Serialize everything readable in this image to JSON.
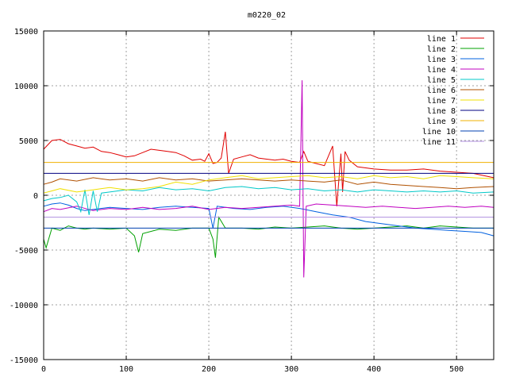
{
  "chart_data": {
    "type": "line",
    "title": "m0220_02",
    "xlabel": "",
    "ylabel": "",
    "xlim": [
      0,
      545
    ],
    "ylim": [
      -15000,
      15000
    ],
    "x_ticks": [
      0,
      100,
      200,
      300,
      400,
      500
    ],
    "y_ticks": [
      -15000,
      -10000,
      -5000,
      0,
      5000,
      10000,
      15000
    ],
    "grid": true,
    "legend_position": "top-right",
    "series": [
      {
        "name": "line 1",
        "color": "#e00000",
        "points": [
          [
            0,
            4200
          ],
          [
            10,
            5000
          ],
          [
            20,
            5100
          ],
          [
            30,
            4700
          ],
          [
            40,
            4500
          ],
          [
            50,
            4300
          ],
          [
            60,
            4400
          ],
          [
            70,
            4000
          ],
          [
            80,
            3900
          ],
          [
            90,
            3700
          ],
          [
            100,
            3500
          ],
          [
            110,
            3600
          ],
          [
            120,
            3900
          ],
          [
            130,
            4200
          ],
          [
            140,
            4100
          ],
          [
            150,
            4000
          ],
          [
            160,
            3900
          ],
          [
            170,
            3600
          ],
          [
            180,
            3200
          ],
          [
            190,
            3300
          ],
          [
            195,
            3100
          ],
          [
            200,
            3800
          ],
          [
            205,
            2900
          ],
          [
            210,
            3000
          ],
          [
            215,
            3400
          ],
          [
            220,
            5800
          ],
          [
            224,
            2000
          ],
          [
            230,
            3300
          ],
          [
            240,
            3500
          ],
          [
            250,
            3700
          ],
          [
            260,
            3400
          ],
          [
            270,
            3300
          ],
          [
            280,
            3200
          ],
          [
            290,
            3300
          ],
          [
            300,
            3100
          ],
          [
            310,
            3000
          ],
          [
            315,
            4000
          ],
          [
            320,
            3100
          ],
          [
            330,
            2900
          ],
          [
            340,
            2700
          ],
          [
            350,
            4500
          ],
          [
            355,
            -1000
          ],
          [
            360,
            3800
          ],
          [
            362,
            300
          ],
          [
            365,
            4000
          ],
          [
            370,
            3200
          ],
          [
            380,
            2600
          ],
          [
            390,
            2500
          ],
          [
            400,
            2400
          ],
          [
            420,
            2300
          ],
          [
            440,
            2300
          ],
          [
            460,
            2400
          ],
          [
            480,
            2200
          ],
          [
            500,
            2100
          ],
          [
            520,
            2000
          ],
          [
            545,
            1600
          ]
        ]
      },
      {
        "name": "line 2",
        "color": "#00a000",
        "points": [
          [
            0,
            -4000
          ],
          [
            3,
            -4800
          ],
          [
            10,
            -3000
          ],
          [
            20,
            -3200
          ],
          [
            30,
            -2800
          ],
          [
            40,
            -3000
          ],
          [
            50,
            -3100
          ],
          [
            60,
            -3000
          ],
          [
            80,
            -3100
          ],
          [
            100,
            -3000
          ],
          [
            110,
            -3700
          ],
          [
            115,
            -5200
          ],
          [
            120,
            -3500
          ],
          [
            140,
            -3100
          ],
          [
            160,
            -3200
          ],
          [
            180,
            -3000
          ],
          [
            200,
            -3000
          ],
          [
            205,
            -4000
          ],
          [
            208,
            -5700
          ],
          [
            212,
            -2000
          ],
          [
            220,
            -3000
          ],
          [
            240,
            -3000
          ],
          [
            260,
            -3100
          ],
          [
            280,
            -2900
          ],
          [
            300,
            -3000
          ],
          [
            320,
            -2900
          ],
          [
            340,
            -2800
          ],
          [
            360,
            -3000
          ],
          [
            380,
            -3100
          ],
          [
            400,
            -3000
          ],
          [
            420,
            -2900
          ],
          [
            440,
            -2800
          ],
          [
            460,
            -3000
          ],
          [
            480,
            -2800
          ],
          [
            500,
            -2900
          ],
          [
            520,
            -3000
          ],
          [
            545,
            -3000
          ]
        ]
      },
      {
        "name": "line 3",
        "color": "#0060e0",
        "points": [
          [
            0,
            -1000
          ],
          [
            10,
            -800
          ],
          [
            20,
            -700
          ],
          [
            30,
            -900
          ],
          [
            40,
            -1200
          ],
          [
            50,
            -1400
          ],
          [
            60,
            -1300
          ],
          [
            80,
            -1100
          ],
          [
            100,
            -1200
          ],
          [
            120,
            -1300
          ],
          [
            140,
            -1100
          ],
          [
            160,
            -1000
          ],
          [
            180,
            -1100
          ],
          [
            200,
            -1200
          ],
          [
            205,
            -3000
          ],
          [
            210,
            -1000
          ],
          [
            230,
            -1200
          ],
          [
            250,
            -1300
          ],
          [
            270,
            -1100
          ],
          [
            290,
            -1000
          ],
          [
            310,
            -1200
          ],
          [
            330,
            -1500
          ],
          [
            350,
            -1800
          ],
          [
            370,
            -2000
          ],
          [
            390,
            -2400
          ],
          [
            410,
            -2600
          ],
          [
            430,
            -2800
          ],
          [
            450,
            -3000
          ],
          [
            470,
            -3100
          ],
          [
            490,
            -3200
          ],
          [
            510,
            -3300
          ],
          [
            530,
            -3400
          ],
          [
            545,
            -3700
          ]
        ]
      },
      {
        "name": "line 4",
        "color": "#c000c0",
        "points": [
          [
            0,
            -1500
          ],
          [
            10,
            -1200
          ],
          [
            20,
            -1300
          ],
          [
            40,
            -1000
          ],
          [
            60,
            -1400
          ],
          [
            80,
            -1200
          ],
          [
            100,
            -1300
          ],
          [
            120,
            -1100
          ],
          [
            140,
            -1300
          ],
          [
            160,
            -1200
          ],
          [
            180,
            -1000
          ],
          [
            200,
            -1300
          ],
          [
            220,
            -1100
          ],
          [
            240,
            -1200
          ],
          [
            260,
            -1100
          ],
          [
            280,
            -1000
          ],
          [
            300,
            -900
          ],
          [
            310,
            -1000
          ],
          [
            313,
            10500
          ],
          [
            315,
            -7500
          ],
          [
            318,
            -1000
          ],
          [
            330,
            -800
          ],
          [
            350,
            -900
          ],
          [
            370,
            -1000
          ],
          [
            390,
            -1100
          ],
          [
            410,
            -1000
          ],
          [
            430,
            -1100
          ],
          [
            450,
            -1200
          ],
          [
            470,
            -1100
          ],
          [
            490,
            -1000
          ],
          [
            510,
            -1100
          ],
          [
            530,
            -1000
          ],
          [
            545,
            -1100
          ]
        ]
      },
      {
        "name": "line 5",
        "color": "#00c8c8",
        "points": [
          [
            0,
            -500
          ],
          [
            10,
            -300
          ],
          [
            20,
            -200
          ],
          [
            30,
            0
          ],
          [
            40,
            -600
          ],
          [
            45,
            -1500
          ],
          [
            50,
            500
          ],
          [
            55,
            -1800
          ],
          [
            60,
            400
          ],
          [
            65,
            -1500
          ],
          [
            70,
            200
          ],
          [
            80,
            300
          ],
          [
            100,
            500
          ],
          [
            120,
            400
          ],
          [
            140,
            700
          ],
          [
            160,
            500
          ],
          [
            180,
            600
          ],
          [
            200,
            400
          ],
          [
            220,
            700
          ],
          [
            240,
            800
          ],
          [
            260,
            600
          ],
          [
            280,
            700
          ],
          [
            300,
            500
          ],
          [
            320,
            600
          ],
          [
            340,
            400
          ],
          [
            360,
            500
          ],
          [
            380,
            300
          ],
          [
            400,
            500
          ],
          [
            420,
            400
          ],
          [
            440,
            300
          ],
          [
            460,
            400
          ],
          [
            480,
            300
          ],
          [
            500,
            400
          ],
          [
            520,
            200
          ],
          [
            545,
            300
          ]
        ]
      },
      {
        "name": "line 6",
        "color": "#b05000",
        "points": [
          [
            0,
            1000
          ],
          [
            10,
            1200
          ],
          [
            20,
            1500
          ],
          [
            40,
            1300
          ],
          [
            60,
            1600
          ],
          [
            80,
            1400
          ],
          [
            100,
            1500
          ],
          [
            120,
            1300
          ],
          [
            140,
            1600
          ],
          [
            160,
            1400
          ],
          [
            180,
            1500
          ],
          [
            200,
            1300
          ],
          [
            220,
            1400
          ],
          [
            240,
            1500
          ],
          [
            260,
            1400
          ],
          [
            280,
            1300
          ],
          [
            300,
            1400
          ],
          [
            320,
            1300
          ],
          [
            340,
            1200
          ],
          [
            360,
            1400
          ],
          [
            380,
            1000
          ],
          [
            400,
            1200
          ],
          [
            420,
            1000
          ],
          [
            440,
            900
          ],
          [
            460,
            800
          ],
          [
            480,
            700
          ],
          [
            500,
            600
          ],
          [
            520,
            700
          ],
          [
            545,
            800
          ]
        ]
      },
      {
        "name": "line 7",
        "color": "#f0e000",
        "points": [
          [
            0,
            200
          ],
          [
            10,
            400
          ],
          [
            20,
            600
          ],
          [
            40,
            300
          ],
          [
            60,
            500
          ],
          [
            80,
            700
          ],
          [
            100,
            500
          ],
          [
            120,
            600
          ],
          [
            140,
            800
          ],
          [
            160,
            1200
          ],
          [
            180,
            1000
          ],
          [
            200,
            1400
          ],
          [
            220,
            1600
          ],
          [
            240,
            1800
          ],
          [
            260,
            1500
          ],
          [
            280,
            1600
          ],
          [
            300,
            1700
          ],
          [
            320,
            1800
          ],
          [
            340,
            1600
          ],
          [
            360,
            1700
          ],
          [
            380,
            1500
          ],
          [
            400,
            1800
          ],
          [
            420,
            1600
          ],
          [
            440,
            1700
          ],
          [
            460,
            1500
          ],
          [
            480,
            1800
          ],
          [
            500,
            1700
          ],
          [
            520,
            1600
          ],
          [
            545,
            1500
          ]
        ]
      },
      {
        "name": "line 8",
        "color": "#000080",
        "points": [
          [
            0,
            2000
          ],
          [
            50,
            2000
          ],
          [
            100,
            2000
          ],
          [
            150,
            2000
          ],
          [
            200,
            2000
          ],
          [
            250,
            2000
          ],
          [
            300,
            2000
          ],
          [
            350,
            2000
          ],
          [
            400,
            2000
          ],
          [
            450,
            2000
          ],
          [
            500,
            2000
          ],
          [
            545,
            2000
          ]
        ]
      },
      {
        "name": "line 9",
        "color": "#f0b000",
        "points": [
          [
            0,
            3000
          ],
          [
            50,
            3000
          ],
          [
            100,
            3000
          ],
          [
            150,
            3000
          ],
          [
            200,
            3000
          ],
          [
            250,
            3000
          ],
          [
            300,
            3000
          ],
          [
            350,
            3000
          ],
          [
            400,
            3000
          ],
          [
            450,
            3000
          ],
          [
            500,
            3000
          ],
          [
            545,
            3000
          ]
        ]
      },
      {
        "name": "line 10",
        "color": "#0040b0",
        "points": [
          [
            0,
            -3000
          ],
          [
            50,
            -3000
          ],
          [
            100,
            -3000
          ],
          [
            150,
            -3000
          ],
          [
            200,
            -3000
          ],
          [
            250,
            -3000
          ],
          [
            300,
            -3000
          ],
          [
            350,
            -3000
          ],
          [
            400,
            -3000
          ],
          [
            450,
            -3000
          ],
          [
            500,
            -3000
          ],
          [
            545,
            -3000
          ]
        ]
      },
      {
        "name": "line 11",
        "color": "#b090e0",
        "points": [
          [
            0,
            -2000
          ],
          [
            50,
            -2000
          ],
          [
            100,
            -2000
          ],
          [
            150,
            -2000
          ],
          [
            200,
            -2000
          ],
          [
            250,
            -2000
          ],
          [
            300,
            -2000
          ],
          [
            350,
            -2000
          ],
          [
            400,
            -2000
          ],
          [
            450,
            -2000
          ],
          [
            500,
            -2000
          ],
          [
            545,
            -2000
          ]
        ]
      }
    ]
  }
}
